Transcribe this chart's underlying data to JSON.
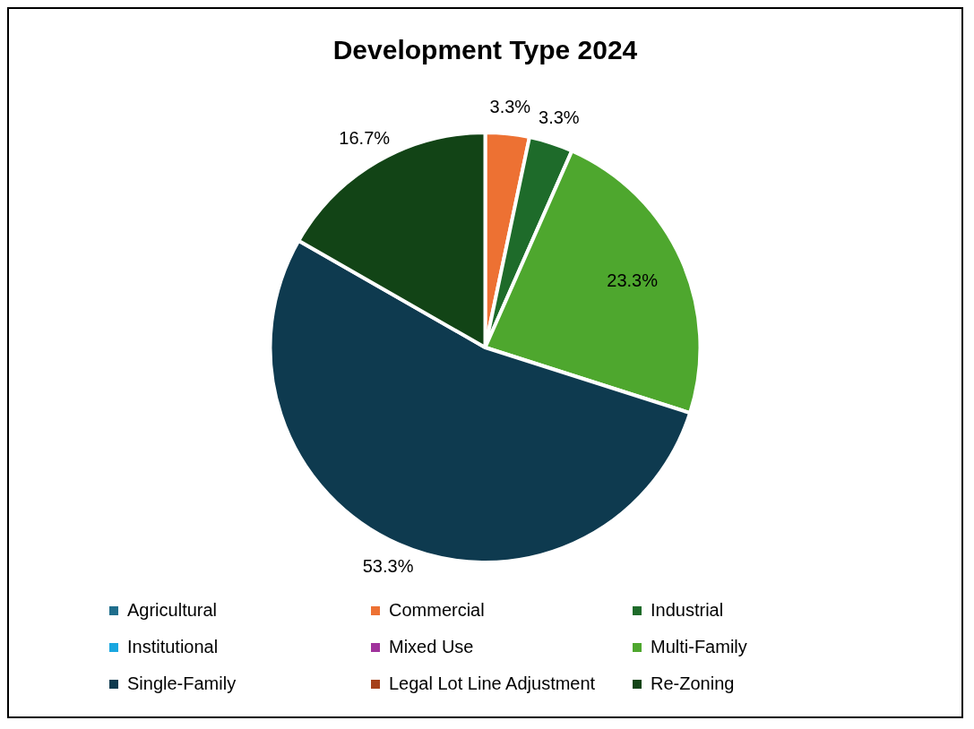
{
  "chart_data": {
    "type": "pie",
    "title": "Development Type 2024",
    "categories": [
      "Agricultural",
      "Commercial",
      "Industrial",
      "Institutional",
      "Mixed Use",
      "Multi-Family",
      "Single-Family",
      "Legal Lot Line Adjustment",
      "Re-Zoning"
    ],
    "values": [
      0,
      3.3,
      3.3,
      0,
      0,
      23.3,
      53.3,
      0,
      16.7
    ],
    "colors": [
      "#1f6e8c",
      "#ed7133",
      "#1e6b2a",
      "#1aa7e0",
      "#a0339c",
      "#4ea72e",
      "#0e3a4f",
      "#a5401a",
      "#124416"
    ],
    "value_labels": [
      null,
      "3.3%",
      "3.3%",
      null,
      null,
      "23.3%",
      "53.3%",
      null,
      "16.7%"
    ],
    "legend": "bottom"
  }
}
